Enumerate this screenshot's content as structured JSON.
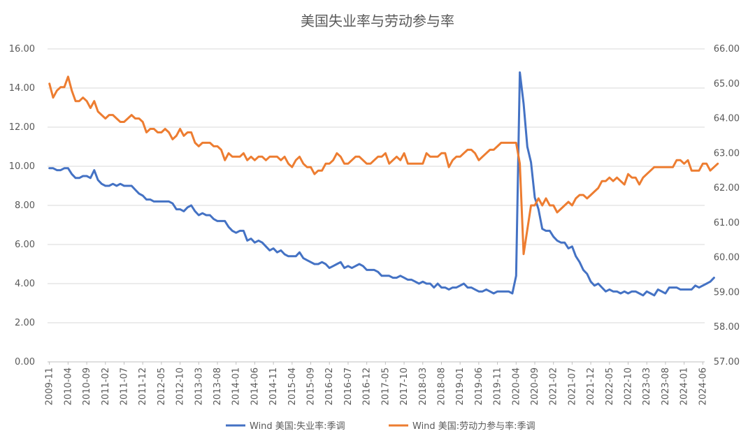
{
  "chart_data": {
    "type": "line",
    "title": "美国失业率与劳动参与率",
    "xlabel": "",
    "ylabel": "",
    "y_left": {
      "ylim": [
        0,
        16
      ],
      "ticks": [
        "0.00",
        "2.00",
        "4.00",
        "6.00",
        "8.00",
        "10.00",
        "12.00",
        "14.00",
        "16.00"
      ]
    },
    "y_right": {
      "ylim": [
        57,
        66
      ],
      "ticks": [
        "57.00",
        "58.00",
        "59.00",
        "60.00",
        "61.00",
        "62.00",
        "63.00",
        "64.00",
        "65.00",
        "66.00"
      ]
    },
    "x_tick_labels": [
      "2009-11",
      "2010-04",
      "2010-09",
      "2011-02",
      "2011-07",
      "2011-12",
      "2012-05",
      "2012-10",
      "2013-03",
      "2013-08",
      "2014-01",
      "2014-06",
      "2014-11",
      "2015-04",
      "2015-09",
      "2016-02",
      "2016-07",
      "2016-12",
      "2017-05",
      "2017-10",
      "2018-03",
      "2018-08",
      "2019-01",
      "2019-06",
      "2019-11",
      "2020-04",
      "2020-09",
      "2021-02",
      "2021-07",
      "2021-12",
      "2022-05",
      "2022-10",
      "2023-03",
      "2023-08",
      "2024-01",
      "2024-06"
    ],
    "x_start": "2009-11",
    "x_end": "2024-07",
    "grid": true,
    "legend_position": "bottom",
    "series": [
      {
        "name": "Wind 美国:失业率:季调",
        "axis": "left",
        "color": "#4472C4",
        "values": [
          9.9,
          9.9,
          9.8,
          9.8,
          9.9,
          9.9,
          9.6,
          9.4,
          9.4,
          9.5,
          9.5,
          9.4,
          9.8,
          9.3,
          9.1,
          9.0,
          9.0,
          9.1,
          9.0,
          9.1,
          9.0,
          9.0,
          9.0,
          8.8,
          8.6,
          8.5,
          8.3,
          8.3,
          8.2,
          8.2,
          8.2,
          8.2,
          8.2,
          8.1,
          7.8,
          7.8,
          7.7,
          7.9,
          8.0,
          7.7,
          7.5,
          7.6,
          7.5,
          7.5,
          7.3,
          7.2,
          7.2,
          7.2,
          6.9,
          6.7,
          6.6,
          6.7,
          6.7,
          6.2,
          6.3,
          6.1,
          6.2,
          6.1,
          5.9,
          5.7,
          5.8,
          5.6,
          5.7,
          5.5,
          5.4,
          5.4,
          5.4,
          5.6,
          5.3,
          5.2,
          5.1,
          5.0,
          5.0,
          5.1,
          5.0,
          4.8,
          4.9,
          5.0,
          5.1,
          4.8,
          4.9,
          4.8,
          4.9,
          5.0,
          4.9,
          4.7,
          4.7,
          4.7,
          4.6,
          4.4,
          4.4,
          4.4,
          4.3,
          4.3,
          4.4,
          4.3,
          4.2,
          4.2,
          4.1,
          4.0,
          4.1,
          4.0,
          4.0,
          3.8,
          4.0,
          3.8,
          3.8,
          3.7,
          3.8,
          3.8,
          3.9,
          4.0,
          3.8,
          3.8,
          3.7,
          3.6,
          3.6,
          3.7,
          3.6,
          3.5,
          3.6,
          3.6,
          3.6,
          3.6,
          3.5,
          4.4,
          14.8,
          13.2,
          11.0,
          10.2,
          8.4,
          7.8,
          6.8,
          6.7,
          6.7,
          6.4,
          6.2,
          6.1,
          6.1,
          5.8,
          5.9,
          5.4,
          5.1,
          4.7,
          4.5,
          4.1,
          3.9,
          4.0,
          3.8,
          3.6,
          3.7,
          3.6,
          3.6,
          3.5,
          3.6,
          3.5,
          3.6,
          3.6,
          3.5,
          3.4,
          3.6,
          3.5,
          3.4,
          3.7,
          3.6,
          3.5,
          3.8,
          3.8,
          3.8,
          3.7,
          3.7,
          3.7,
          3.7,
          3.9,
          3.8,
          3.9,
          4.0,
          4.1,
          4.3
        ]
      },
      {
        "name": "Wind 美国:劳动力参与率:季调",
        "axis": "right",
        "color": "#ED7D31",
        "values": [
          65.0,
          64.6,
          64.8,
          64.9,
          64.9,
          65.2,
          64.8,
          64.5,
          64.5,
          64.6,
          64.5,
          64.3,
          64.5,
          64.2,
          64.1,
          64.0,
          64.1,
          64.1,
          64.0,
          63.9,
          63.9,
          64.0,
          64.1,
          64.0,
          64.0,
          63.9,
          63.6,
          63.7,
          63.7,
          63.6,
          63.6,
          63.7,
          63.6,
          63.4,
          63.5,
          63.7,
          63.5,
          63.6,
          63.6,
          63.3,
          63.2,
          63.3,
          63.3,
          63.3,
          63.2,
          63.2,
          63.1,
          62.8,
          63.0,
          62.9,
          62.9,
          62.9,
          63.0,
          62.8,
          62.9,
          62.8,
          62.9,
          62.9,
          62.8,
          62.9,
          62.9,
          62.9,
          62.8,
          62.9,
          62.7,
          62.6,
          62.8,
          62.9,
          62.7,
          62.6,
          62.6,
          62.4,
          62.5,
          62.5,
          62.7,
          62.7,
          62.8,
          63.0,
          62.9,
          62.7,
          62.7,
          62.8,
          62.9,
          62.9,
          62.8,
          62.7,
          62.7,
          62.8,
          62.9,
          62.9,
          63.0,
          62.7,
          62.8,
          62.9,
          62.8,
          63.0,
          62.7,
          62.7,
          62.7,
          62.7,
          62.7,
          63.0,
          62.9,
          62.9,
          62.9,
          63.0,
          63.0,
          62.6,
          62.8,
          62.9,
          62.9,
          63.0,
          63.1,
          63.1,
          63.0,
          62.8,
          62.9,
          63.0,
          63.1,
          63.1,
          63.2,
          63.3,
          63.3,
          63.3,
          63.3,
          63.3,
          62.7,
          60.1,
          60.8,
          61.5,
          61.5,
          61.7,
          61.5,
          61.7,
          61.5,
          61.5,
          61.3,
          61.4,
          61.5,
          61.6,
          61.5,
          61.7,
          61.8,
          61.8,
          61.7,
          61.8,
          61.9,
          62.0,
          62.2,
          62.2,
          62.3,
          62.2,
          62.3,
          62.2,
          62.1,
          62.4,
          62.3,
          62.3,
          62.1,
          62.3,
          62.4,
          62.5,
          62.6,
          62.6,
          62.6,
          62.6,
          62.6,
          62.6,
          62.8,
          62.8,
          62.7,
          62.8,
          62.5,
          62.5,
          62.5,
          62.7,
          62.7,
          62.5,
          62.6,
          62.7
        ]
      }
    ]
  }
}
